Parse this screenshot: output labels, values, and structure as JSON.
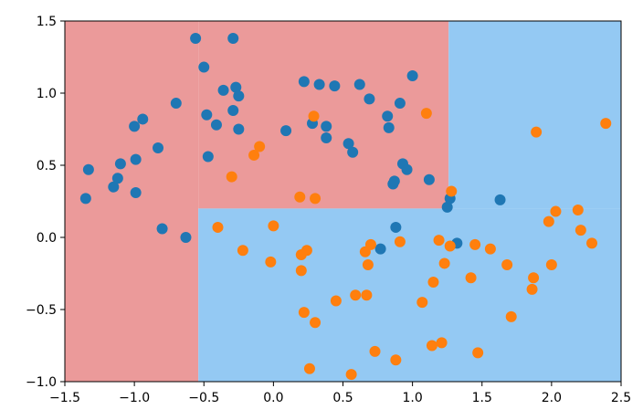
{
  "chart_data": {
    "type": "scatter",
    "title": "",
    "xlabel": "",
    "ylabel": "",
    "xlim": [
      -1.5,
      2.5
    ],
    "ylim": [
      -1.0,
      1.5
    ],
    "xticks": [
      "−1.5",
      "−1.0",
      "−0.5",
      "0.0",
      "0.5",
      "1.0",
      "1.5",
      "2.0",
      "2.5"
    ],
    "yticks": [
      "−1.0",
      "−0.5",
      "0.0",
      "0.5",
      "1.0",
      "1.5"
    ],
    "grid": false,
    "colors": {
      "region_class_0": "#eb9a9a",
      "region_class_1": "#94c9f3",
      "series_class_0": "#1f77b4",
      "series_class_1": "#ff7f0e"
    },
    "decision_regions": [
      {
        "class": 0,
        "x": [
          -1.5,
          -0.54
        ],
        "y": [
          -1.0,
          1.5
        ]
      },
      {
        "class": 0,
        "x": [
          -0.54,
          1.26
        ],
        "y": [
          0.2,
          1.5
        ]
      },
      {
        "class": 1,
        "x": [
          -0.54,
          2.5
        ],
        "y": [
          -1.0,
          0.2
        ]
      },
      {
        "class": 1,
        "x": [
          1.26,
          2.5
        ],
        "y": [
          0.2,
          1.5
        ]
      }
    ],
    "series": [
      {
        "class": 0,
        "points": [
          [
            -1.35,
            0.27
          ],
          [
            -1.33,
            0.47
          ],
          [
            -1.15,
            0.35
          ],
          [
            -1.12,
            0.41
          ],
          [
            -1.1,
            0.51
          ],
          [
            -1.0,
            0.77
          ],
          [
            -0.99,
            0.54
          ],
          [
            -0.99,
            0.31
          ],
          [
            -0.94,
            0.82
          ],
          [
            -0.83,
            0.62
          ],
          [
            -0.8,
            0.06
          ],
          [
            -0.7,
            0.93
          ],
          [
            -0.63,
            0.0
          ],
          [
            -0.56,
            1.38
          ],
          [
            -0.5,
            1.18
          ],
          [
            -0.48,
            0.85
          ],
          [
            -0.47,
            0.56
          ],
          [
            -0.41,
            0.78
          ],
          [
            -0.36,
            1.02
          ],
          [
            -0.29,
            1.38
          ],
          [
            -0.29,
            0.88
          ],
          [
            -0.27,
            1.04
          ],
          [
            -0.25,
            0.98
          ],
          [
            -0.25,
            0.75
          ],
          [
            0.09,
            0.74
          ],
          [
            0.22,
            1.08
          ],
          [
            0.28,
            0.79
          ],
          [
            0.33,
            1.06
          ],
          [
            0.38,
            0.77
          ],
          [
            0.38,
            0.69
          ],
          [
            0.44,
            1.05
          ],
          [
            0.54,
            0.65
          ],
          [
            0.57,
            0.59
          ],
          [
            0.62,
            1.06
          ],
          [
            0.69,
            0.96
          ],
          [
            0.77,
            -0.08
          ],
          [
            0.82,
            0.84
          ],
          [
            0.83,
            0.76
          ],
          [
            0.86,
            0.37
          ],
          [
            0.87,
            0.39
          ],
          [
            0.88,
            0.07
          ],
          [
            0.91,
            0.93
          ],
          [
            0.93,
            0.51
          ],
          [
            0.96,
            0.47
          ],
          [
            1.0,
            1.12
          ],
          [
            1.12,
            0.4
          ],
          [
            1.25,
            0.21
          ],
          [
            1.27,
            0.27
          ],
          [
            1.32,
            -0.04
          ],
          [
            1.63,
            0.26
          ]
        ]
      },
      {
        "class": 1,
        "points": [
          [
            -0.4,
            0.07
          ],
          [
            -0.22,
            -0.09
          ],
          [
            -0.3,
            0.42
          ],
          [
            -0.14,
            0.57
          ],
          [
            -0.1,
            0.63
          ],
          [
            -0.02,
            -0.17
          ],
          [
            0.0,
            0.08
          ],
          [
            0.19,
            0.28
          ],
          [
            0.2,
            -0.12
          ],
          [
            0.2,
            -0.23
          ],
          [
            0.22,
            -0.52
          ],
          [
            0.24,
            -0.09
          ],
          [
            0.26,
            -0.91
          ],
          [
            0.29,
            0.84
          ],
          [
            0.3,
            0.27
          ],
          [
            0.3,
            -0.59
          ],
          [
            0.45,
            -0.44
          ],
          [
            0.56,
            -0.95
          ],
          [
            0.59,
            -0.4
          ],
          [
            0.66,
            -0.1
          ],
          [
            0.67,
            -0.4
          ],
          [
            0.68,
            -0.19
          ],
          [
            0.7,
            -0.05
          ],
          [
            0.73,
            -0.79
          ],
          [
            0.88,
            -0.85
          ],
          [
            0.91,
            -0.03
          ],
          [
            1.07,
            -0.45
          ],
          [
            1.1,
            0.86
          ],
          [
            1.14,
            -0.75
          ],
          [
            1.15,
            -0.31
          ],
          [
            1.19,
            -0.02
          ],
          [
            1.21,
            -0.73
          ],
          [
            1.23,
            -0.18
          ],
          [
            1.28,
            0.32
          ],
          [
            1.27,
            -0.06
          ],
          [
            1.42,
            -0.28
          ],
          [
            1.45,
            -0.05
          ],
          [
            1.47,
            -0.8
          ],
          [
            1.56,
            -0.08
          ],
          [
            1.68,
            -0.19
          ],
          [
            1.71,
            -0.55
          ],
          [
            1.86,
            -0.36
          ],
          [
            1.87,
            -0.28
          ],
          [
            1.89,
            0.73
          ],
          [
            1.98,
            0.11
          ],
          [
            2.0,
            -0.19
          ],
          [
            2.03,
            0.18
          ],
          [
            2.19,
            0.19
          ],
          [
            2.21,
            0.05
          ],
          [
            2.29,
            -0.04
          ],
          [
            2.39,
            0.79
          ]
        ]
      }
    ]
  }
}
